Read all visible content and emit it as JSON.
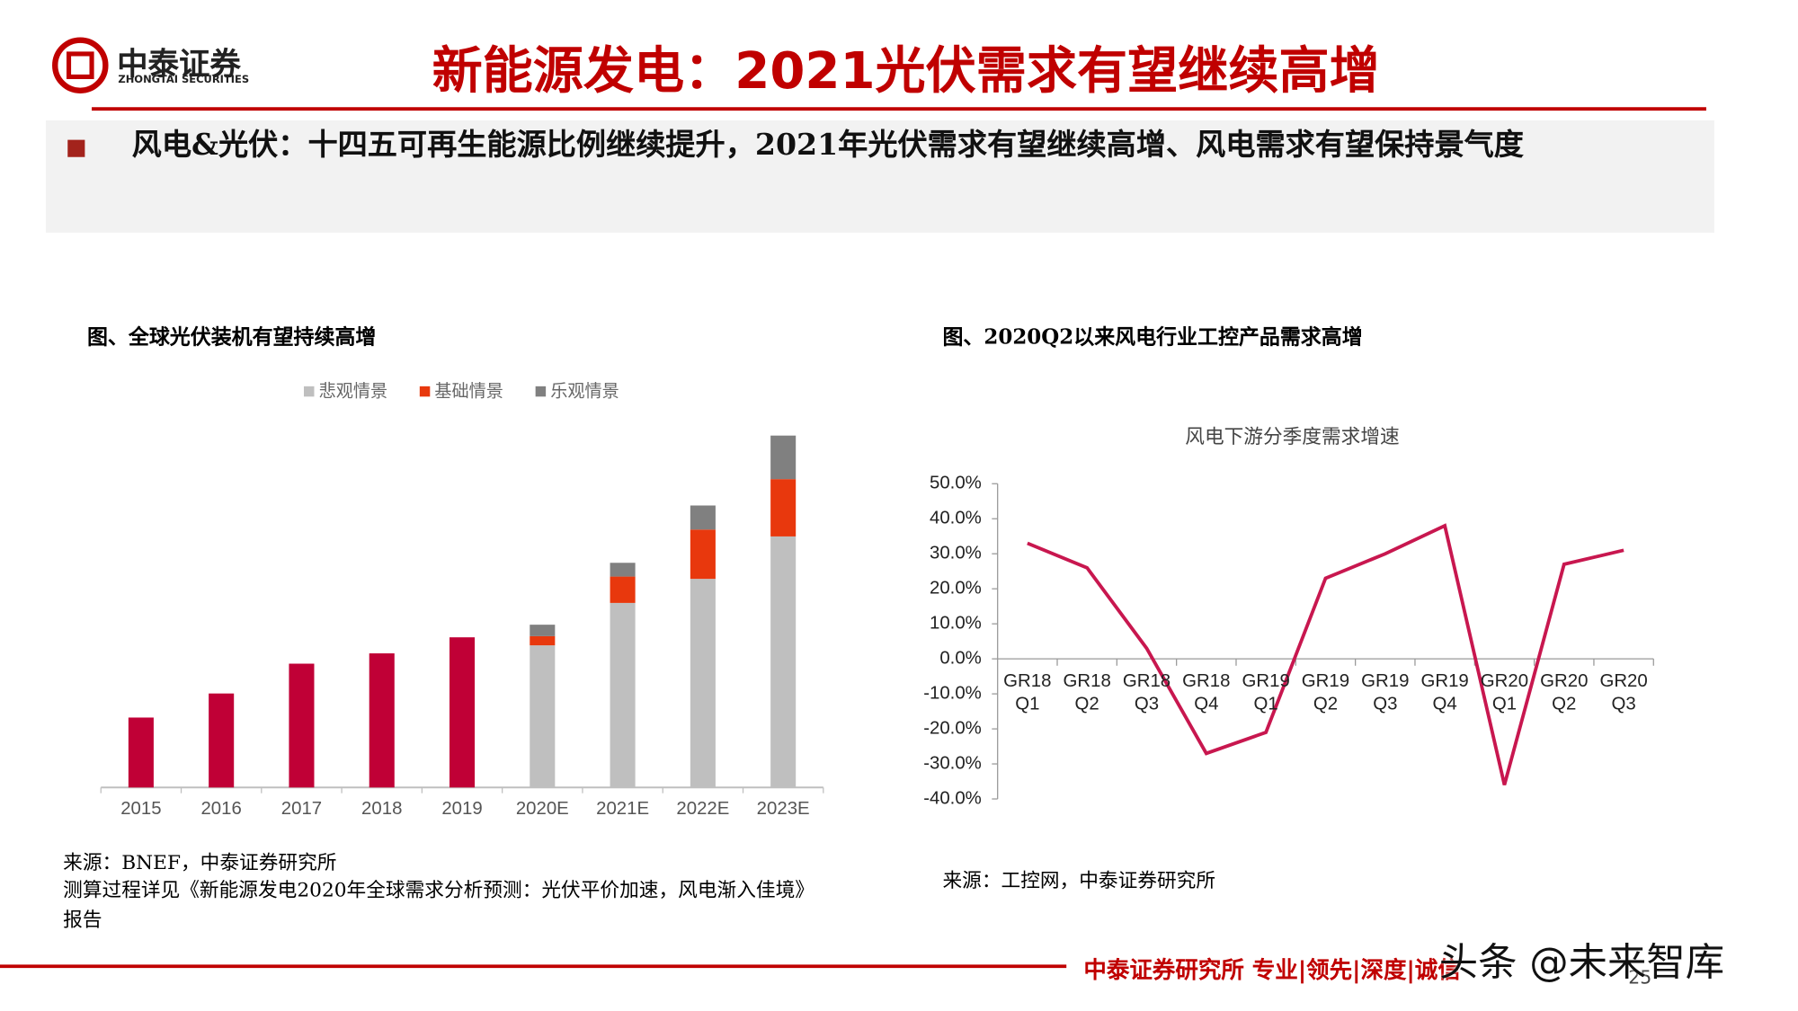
{
  "header": {
    "logo_cn": "中泰证券",
    "logo_en": "ZHONGTAI SECURITIES",
    "title": "新能源发电：2021光伏需求有望继续高增"
  },
  "summary": "风电&光伏：十四五可再生能源比例继续提升，2021年光伏需求有望继续高增、风电需求有望保持景气度",
  "chart_data": [
    {
      "type": "bar",
      "caption": "图、全球光伏装机有望持续高增",
      "categories": [
        "2015",
        "2016",
        "2017",
        "2018",
        "2019",
        "2020E",
        "2021E",
        "2022E",
        "2023E"
      ],
      "values": [
        61,
        82,
        108,
        117,
        131,
        null,
        null,
        null,
        null
      ],
      "color": "#c00036",
      "series": [
        {
          "name": "悲观情景",
          "color": "#bfbfbf",
          "values": [
            null,
            null,
            null,
            null,
            null,
            124,
            161,
            182,
            219
          ]
        },
        {
          "name": "基础情景",
          "color": "#e8380d",
          "values": [
            null,
            null,
            null,
            null,
            null,
            8,
            23,
            43,
            50
          ]
        },
        {
          "name": "乐观情景",
          "color": "#808080",
          "values": [
            null,
            null,
            null,
            null,
            null,
            10,
            12,
            21,
            38
          ]
        }
      ],
      "source": [
        "来源：BNEF，中泰证券研究所",
        "测算过程详见《新能源发电2020年全球需求分析预测：光伏平价加速，风电渐入佳境》报告"
      ]
    },
    {
      "type": "line",
      "caption": "图、2020Q2以来风电行业工控产品需求高增",
      "title": "风电下游分季度需求增速",
      "categories": [
        "GR18\nQ1",
        "GR18\nQ2",
        "GR18\nQ3",
        "GR18\nQ4",
        "GR19\nQ1",
        "GR19\nQ2",
        "GR19\nQ3",
        "GR19\nQ4",
        "GR20\nQ1",
        "GR20\nQ2",
        "GR20\nQ3"
      ],
      "values": [
        33,
        26,
        3,
        -27,
        -21,
        23,
        30,
        38,
        -36,
        27,
        31
      ],
      "color": "#c8174f",
      "ylim": [
        -40,
        50
      ],
      "yticks": [
        {
          "value": -40,
          "label": "-40.0%"
        },
        {
          "value": -30,
          "label": "-30.0%"
        },
        {
          "value": -20,
          "label": "-20.0%"
        },
        {
          "value": -10,
          "label": "-10.0%"
        },
        {
          "value": 0,
          "label": "0.0%"
        },
        {
          "value": 10,
          "label": "10.0%"
        },
        {
          "value": 20,
          "label": "20.0%"
        },
        {
          "value": 30,
          "label": "30.0%"
        },
        {
          "value": 40,
          "label": "40.0%"
        },
        {
          "value": 50,
          "label": "50.0%"
        }
      ],
      "source": [
        "来源：工控网，中泰证券研究所"
      ]
    }
  ],
  "footer": {
    "text": "中泰证券研究所 专业|领先|深度|诚信",
    "page": "25"
  },
  "watermark": "头条 @未来智库"
}
